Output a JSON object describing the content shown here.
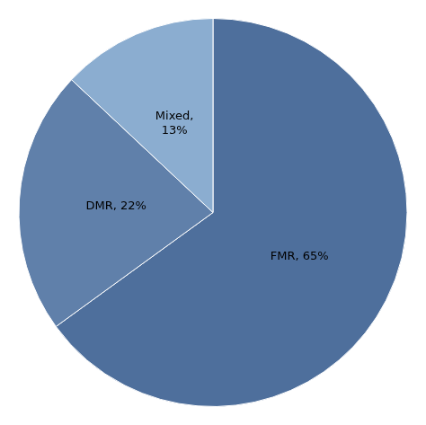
{
  "chart_data": {
    "type": "pie",
    "categories": [
      "FMR",
      "DMR",
      "Mixed"
    ],
    "values": [
      65,
      22,
      13
    ],
    "colors": [
      "#4E6F9C",
      "#6080AA",
      "#8BADD0"
    ],
    "data_labels": true,
    "value_labels": [
      "FMR, 65%",
      "DMR, 22%",
      "Mixed,\n13%"
    ]
  }
}
